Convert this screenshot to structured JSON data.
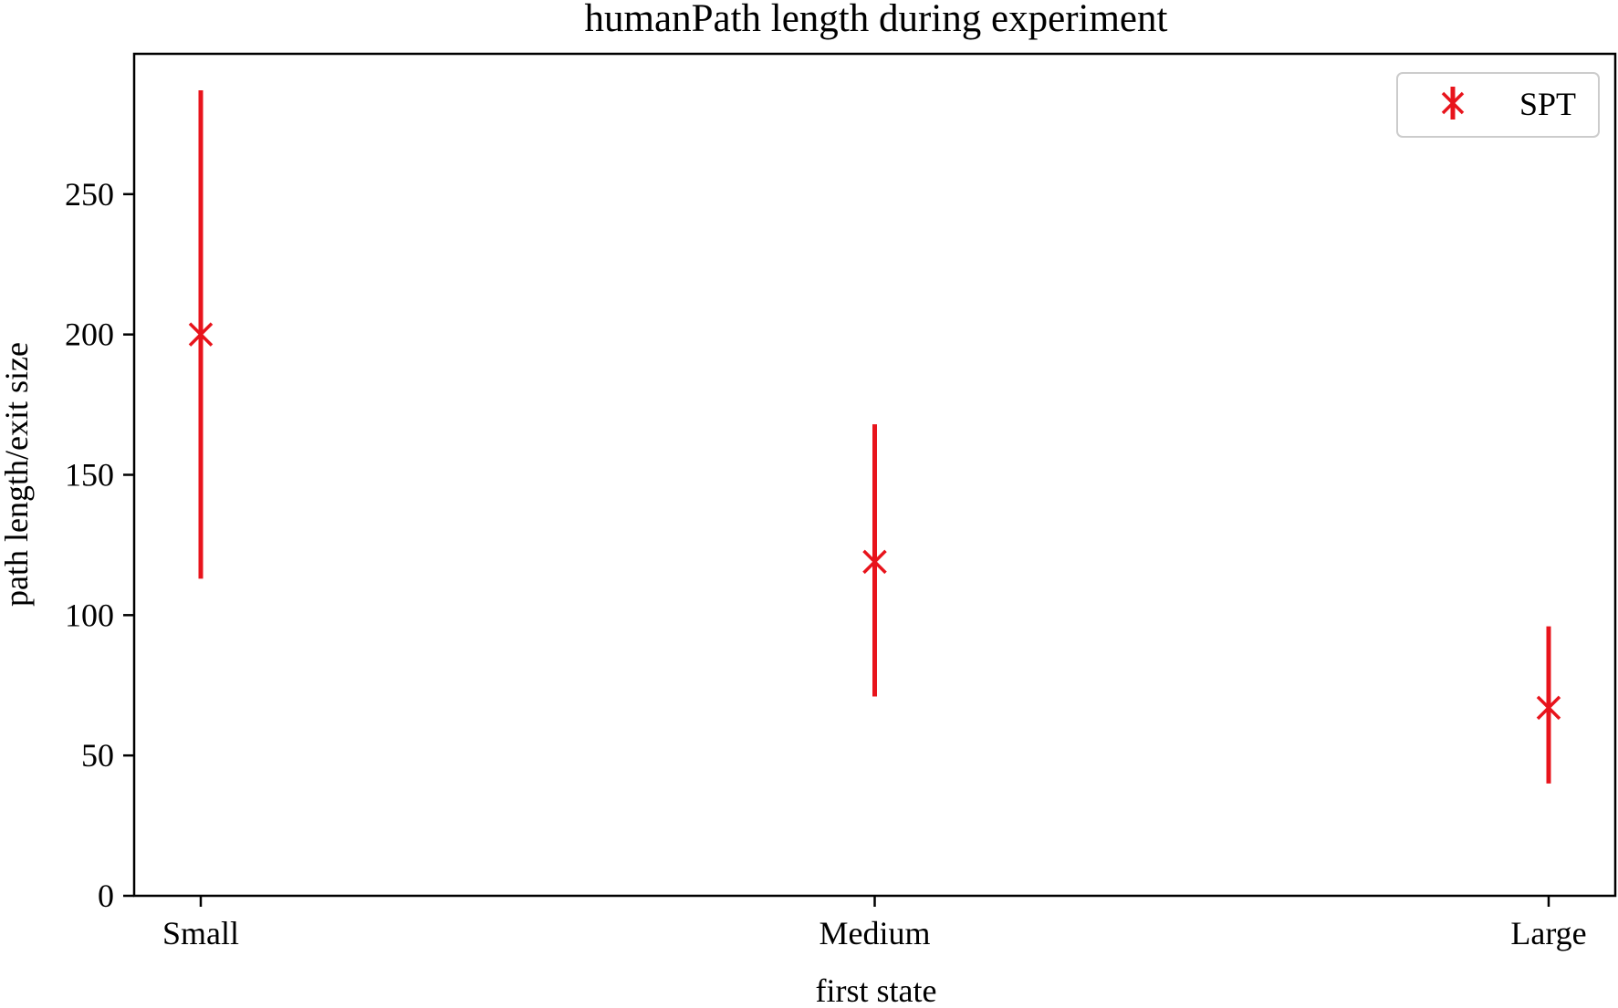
{
  "chart_data": {
    "type": "scatter",
    "title": "humanPath length during experiment",
    "xlabel": "first state",
    "ylabel": "path length/exit size",
    "categories": [
      "Small",
      "Medium",
      "Large"
    ],
    "series": [
      {
        "name": "SPT",
        "color": "#e8141c",
        "marker": "x",
        "values": [
          200,
          119,
          67
        ],
        "error_low": [
          113,
          71,
          40
        ],
        "error_high": [
          287,
          168,
          96
        ]
      }
    ],
    "yticks": [
      0,
      50,
      100,
      150,
      200,
      250
    ],
    "ylim": [
      0,
      300
    ],
    "grid": false,
    "legend": "top-right"
  }
}
